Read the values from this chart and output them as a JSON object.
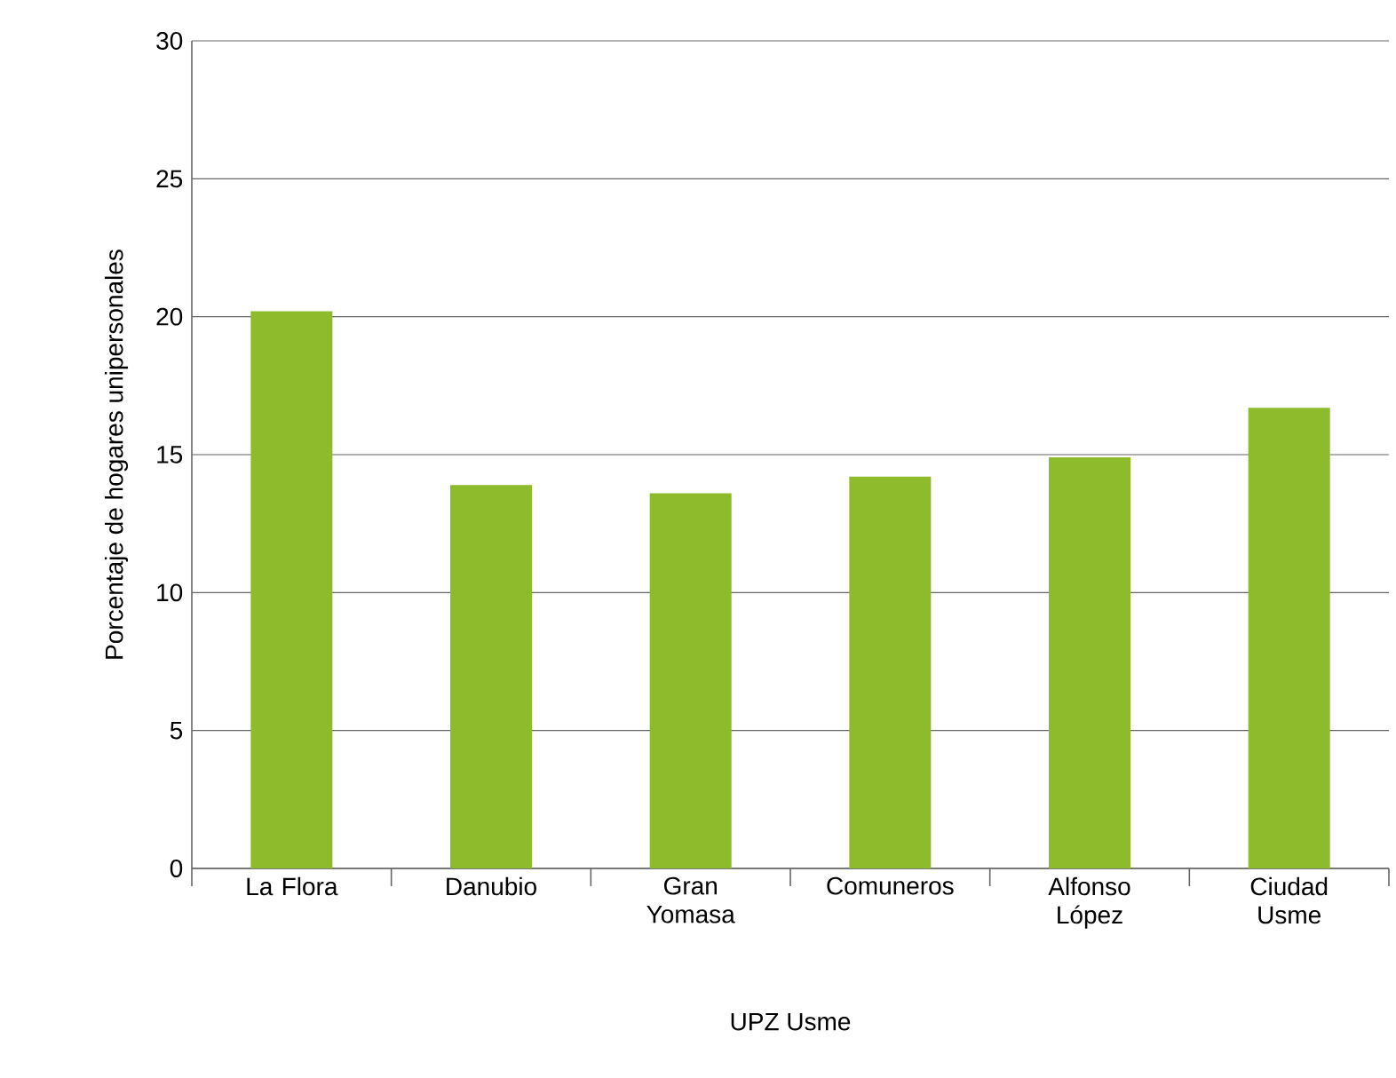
{
  "chart_data": {
    "type": "bar",
    "xlabel": "UPZ Usme",
    "ylabel": "Porcentaje de hogares unipersonales",
    "categories": [
      "La Flora",
      "Danubio",
      "Gran Yomasa",
      "Comuneros",
      "Alfonso López",
      "Ciudad Usme"
    ],
    "values": [
      20.2,
      13.9,
      13.6,
      14.2,
      14.9,
      16.7
    ],
    "color": "#8dbb2b",
    "ylim": [
      0,
      30
    ],
    "yticks": [
      0,
      5,
      10,
      15,
      20,
      25,
      30
    ],
    "grid": "y"
  }
}
